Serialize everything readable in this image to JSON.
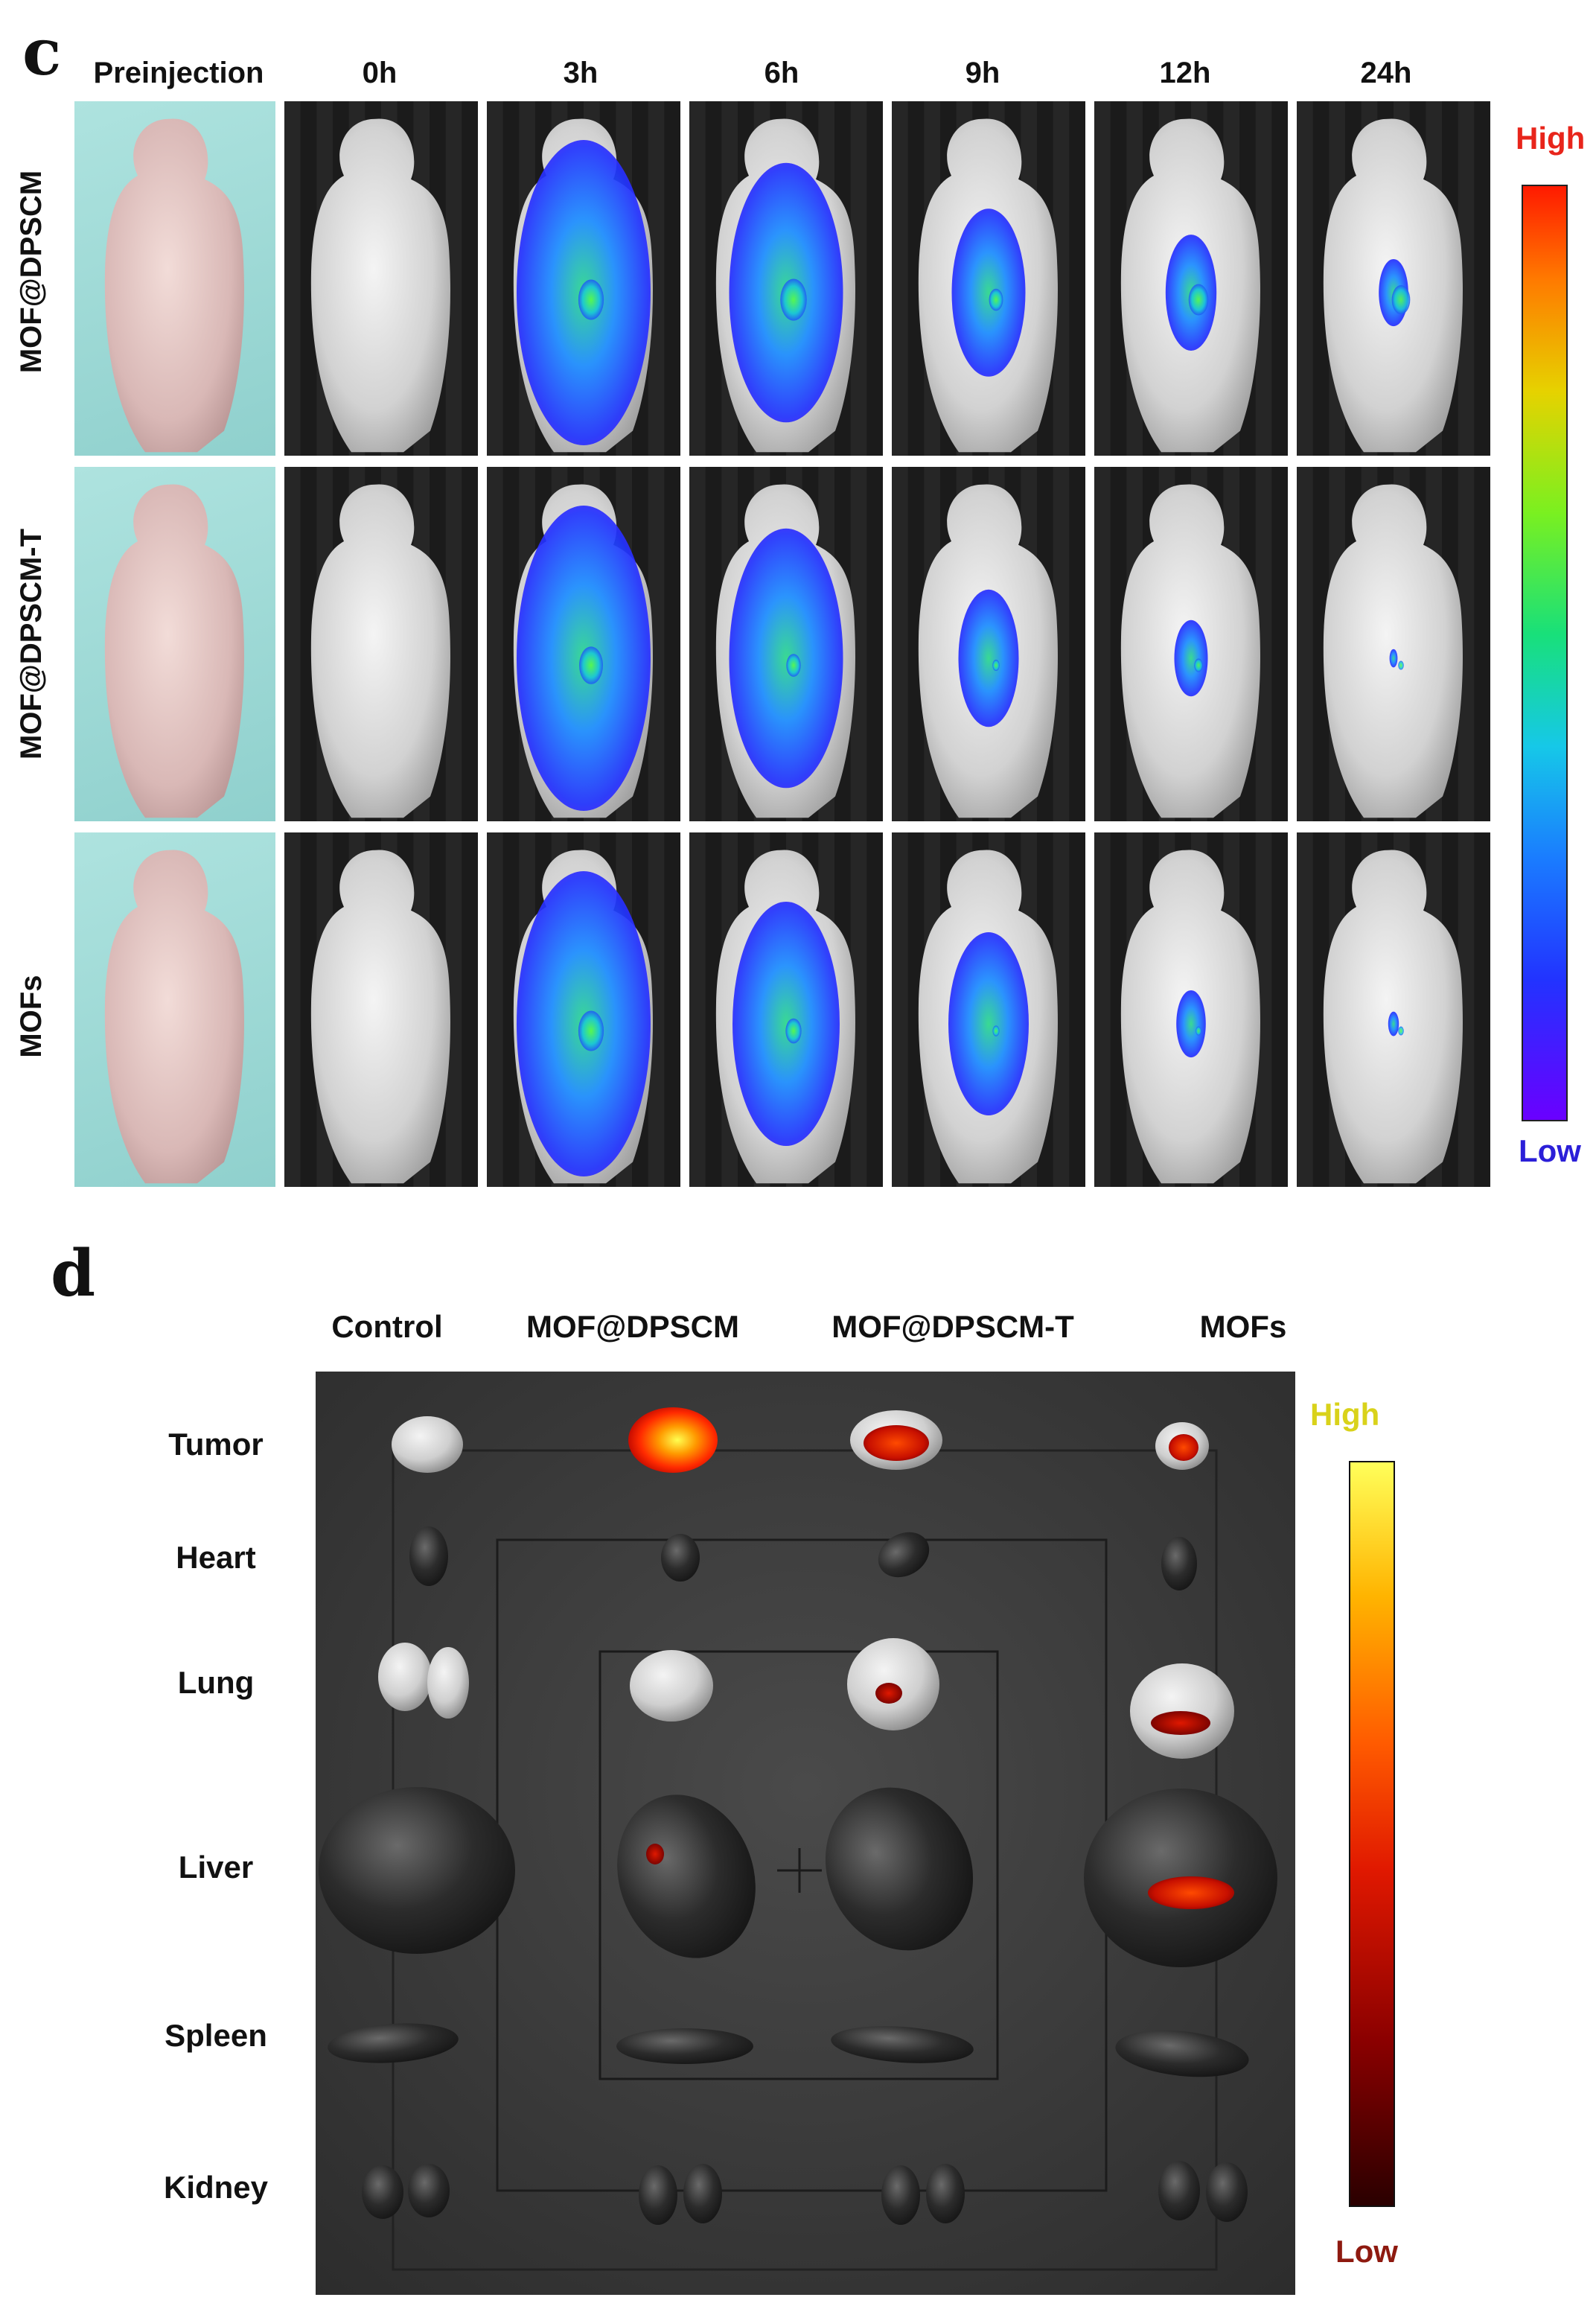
{
  "panel_c": {
    "letter": "c",
    "columns": [
      "Preinjection",
      "0h",
      "3h",
      "6h",
      "9h",
      "12h",
      "24h"
    ],
    "rows": [
      "MOF@DPSCM",
      "MOF@DPSCM-T",
      "MOFs"
    ],
    "colorbar": {
      "high": "High",
      "low": "Low",
      "high_color": "#e8251b",
      "low_color": "#2b1fd8"
    },
    "signal_colormap": [
      "#3b00ff",
      "#1a44ff",
      "#17a6ff",
      "#14e0c8",
      "#3cff40",
      "#e8ff20",
      "#ffb000",
      "#ff2a00"
    ]
  },
  "panel_d": {
    "letter": "d",
    "columns": [
      "Control",
      "MOF@DPSCM",
      "MOF@DPSCM-T",
      "MOFs"
    ],
    "organs": [
      "Tumor",
      "Heart",
      "Lung",
      "Liver",
      "Spleen",
      "Kidney"
    ],
    "colorbar": {
      "high": "High",
      "low": "Low",
      "high_color": "#d9d21a",
      "low_color": "#8e1a10"
    },
    "signal_colormap": [
      "#2a0000",
      "#7a0000",
      "#c81000",
      "#ff3a00",
      "#ff9a00",
      "#ffff40"
    ]
  }
}
